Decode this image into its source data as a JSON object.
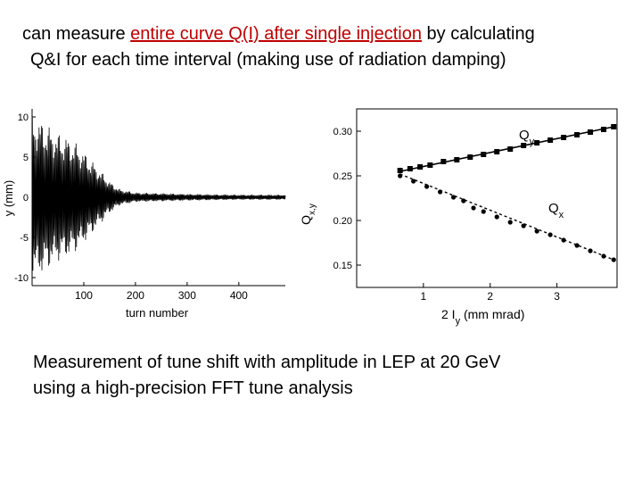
{
  "headline": {
    "line1_prefix": "can measure ",
    "line1_link": "entire curve Q(I) after single injection",
    "line1_suffix": " by calculating",
    "line2": "Q&I for each time interval (making use of radiation damping)"
  },
  "caption": {
    "line1": "Measurement of tune shift with amplitude in LEP at 20 GeV",
    "line2": "using a high-precision FFT tune analysis"
  },
  "colors": {
    "text": "#000000",
    "highlight": "#c00000"
  },
  "chart_data": [
    {
      "type": "line",
      "xlabel": "turn number",
      "ylabel": "y (mm)",
      "xlim": [
        0,
        490
      ],
      "ylim": [
        -11,
        11
      ],
      "x_ticks": [
        "100",
        "200",
        "300",
        "400"
      ],
      "y_ticks": [
        "10",
        "5",
        "0",
        "-5",
        "-10"
      ],
      "envelope": {
        "x": [
          0,
          10,
          30,
          50,
          70,
          90,
          110,
          130,
          150,
          170,
          200,
          250,
          300,
          350,
          400,
          450,
          490
        ],
        "amplitude": [
          10,
          10,
          9,
          8,
          7.5,
          6.5,
          5,
          3.5,
          2,
          1,
          0.6,
          0.5,
          0.4,
          0.35,
          0.3,
          0.3,
          0.3
        ]
      }
    },
    {
      "type": "scatter",
      "xlabel_main": "2 I",
      "xlabel_sub": "y",
      "xlabel_unit": " (mm mrad)",
      "ylabel_main": "Q",
      "ylabel_sub": "x,y",
      "xlim": [
        0,
        3.9
      ],
      "ylim": [
        0.125,
        0.325
      ],
      "x_ticks": [
        "1",
        "2",
        "3"
      ],
      "y_ticks": [
        "0.30",
        "0.25",
        "0.20",
        "0.15"
      ],
      "series": [
        {
          "name_main": "Q",
          "name_sub": "y",
          "x": [
            0.65,
            0.8,
            0.95,
            1.1,
            1.3,
            1.5,
            1.7,
            1.9,
            2.1,
            2.3,
            2.5,
            2.7,
            2.9,
            3.1,
            3.3,
            3.5,
            3.7,
            3.85
          ],
          "y": [
            0.256,
            0.258,
            0.26,
            0.262,
            0.266,
            0.268,
            0.271,
            0.274,
            0.277,
            0.28,
            0.284,
            0.287,
            0.29,
            0.293,
            0.296,
            0.299,
            0.302,
            0.305
          ],
          "fit": [
            [
              0.65,
              0.255
            ],
            [
              3.85,
              0.305
            ]
          ]
        },
        {
          "name_main": "Q",
          "name_sub": "x",
          "x": [
            0.65,
            0.85,
            1.05,
            1.25,
            1.45,
            1.6,
            1.75,
            1.9,
            2.1,
            2.3,
            2.5,
            2.7,
            2.9,
            3.1,
            3.3,
            3.5,
            3.7,
            3.85
          ],
          "y": [
            0.25,
            0.244,
            0.238,
            0.232,
            0.226,
            0.222,
            0.214,
            0.21,
            0.204,
            0.198,
            0.194,
            0.188,
            0.184,
            0.178,
            0.172,
            0.166,
            0.16,
            0.156
          ],
          "fit": [
            [
              0.65,
              0.252
            ],
            [
              3.85,
              0.156
            ]
          ]
        }
      ]
    }
  ]
}
